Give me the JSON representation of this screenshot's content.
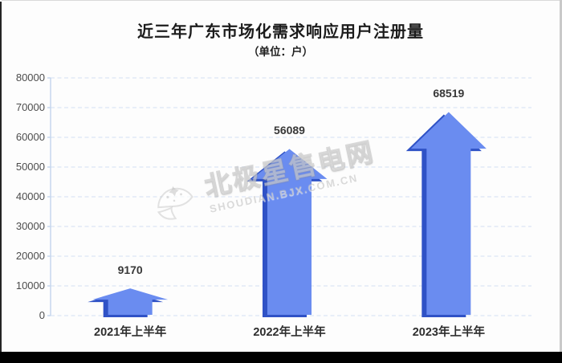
{
  "page": {
    "background": "#ffffff",
    "frame_bottom_bar_color": "#000000"
  },
  "chart_data": {
    "type": "bar",
    "variant": "3d-arrow-bars",
    "title": "近三年广东市场化需求响应用户注册量",
    "unit_label": "（单位：户）",
    "categories": [
      "2021年上半年",
      "2022年上半年",
      "2023年上半年"
    ],
    "values": [
      9170,
      56089,
      68519
    ],
    "value_labels": [
      "9170",
      "56089",
      "68519"
    ],
    "ylim": [
      0,
      80000
    ],
    "ytick_step": 10000,
    "yticks": [
      0,
      10000,
      20000,
      30000,
      40000,
      50000,
      60000,
      70000,
      80000
    ],
    "grid": "dashed-horizontal",
    "legend": "none",
    "bar_color": "#6a8cf0",
    "bar_edge_color": "#2f52c6",
    "axis_color": "#c6d7ee",
    "grid_color": "#e2eaf6",
    "tick_label_color": "#4c4c4c",
    "value_label_color": "#383838"
  },
  "watermark": {
    "brand": "北极星售电网",
    "url": "SHOUDIAN.BJX.COM.CN",
    "logo": "polar-star-moon-logo"
  }
}
